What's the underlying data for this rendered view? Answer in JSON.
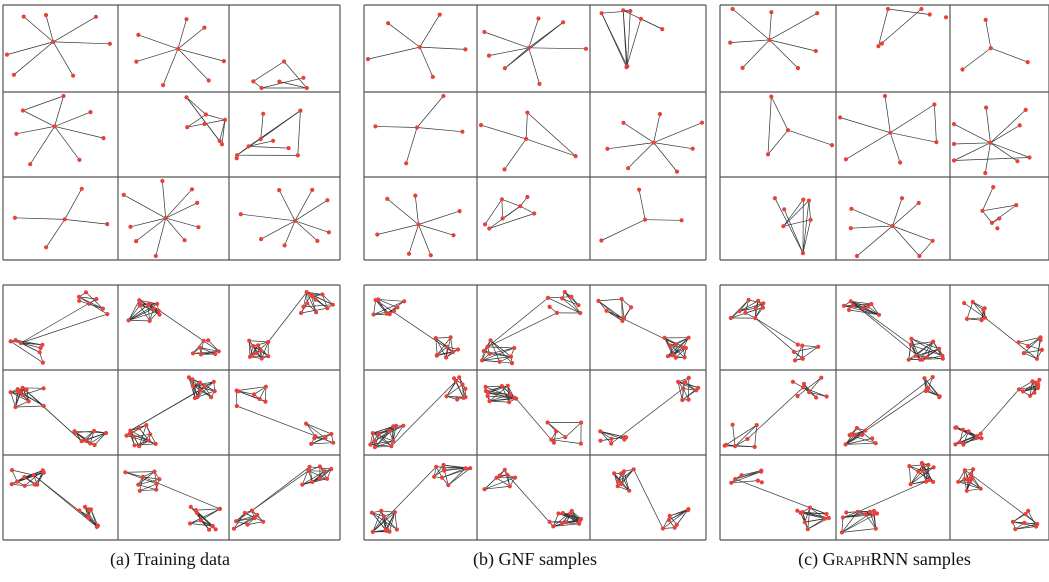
{
  "figure": {
    "panels": [
      {
        "caption_prefix": "(a) ",
        "caption_lead": "Training data",
        "caption_cap": "",
        "caption_rest": "",
        "caption_tail": ""
      },
      {
        "caption_prefix": "(b) ",
        "caption_lead": "GNF samples",
        "caption_cap": "",
        "caption_rest": "",
        "caption_tail": ""
      },
      {
        "caption_prefix": "(c) ",
        "caption_lead": "",
        "caption_cap": "G",
        "caption_rest": "RAPH",
        "caption_tail": "RNN samples"
      }
    ],
    "colors": {
      "node": "#e8403a",
      "edge": "#333333",
      "border": "#555555",
      "background": "#ffffff"
    }
  }
}
